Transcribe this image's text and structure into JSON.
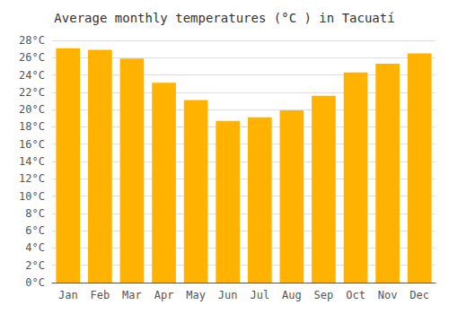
{
  "chart_data": {
    "type": "bar",
    "title": "Average monthly temperatures (°C ) in Tacuatí",
    "categories": [
      "Jan",
      "Feb",
      "Mar",
      "Apr",
      "May",
      "Jun",
      "Jul",
      "Aug",
      "Sep",
      "Oct",
      "Nov",
      "Dec"
    ],
    "values": [
      27.1,
      26.9,
      25.9,
      23.1,
      21.1,
      18.7,
      19.1,
      19.9,
      21.6,
      24.3,
      25.3,
      26.5
    ],
    "color": "#FFB300",
    "ylim": [
      0,
      28
    ],
    "yticks": [
      {
        "value": 0,
        "label": "0°C"
      },
      {
        "value": 2,
        "label": "2°C"
      },
      {
        "value": 4,
        "label": "4°C"
      },
      {
        "value": 6,
        "label": "6°C"
      },
      {
        "value": 8,
        "label": "8°C"
      },
      {
        "value": 10,
        "label": "10°C"
      },
      {
        "value": 12,
        "label": "12°C"
      },
      {
        "value": 14,
        "label": "14°C"
      },
      {
        "value": 16,
        "label": "16°C"
      },
      {
        "value": 18,
        "label": "18°C"
      },
      {
        "value": 20,
        "label": "20°C"
      },
      {
        "value": 22,
        "label": "22°C"
      },
      {
        "value": 24,
        "label": "24°C"
      },
      {
        "value": 26,
        "label": "26°C"
      },
      {
        "value": 28,
        "label": "28°C"
      }
    ],
    "grid": true
  }
}
